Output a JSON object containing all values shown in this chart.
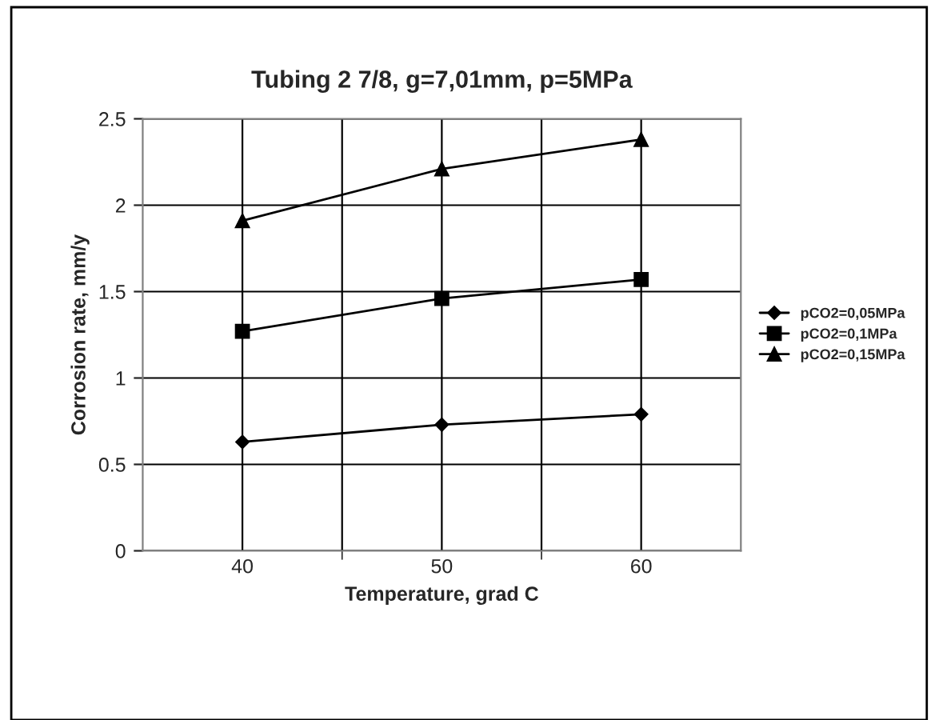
{
  "chart_data": {
    "type": "line",
    "title": "Tubing 2 7/8, g=7,01mm, p=5MPa",
    "xlabel": "Temperature, grad C",
    "ylabel": "Corrosion rate, mm/y",
    "categories": [
      "40",
      "50",
      "60"
    ],
    "series": [
      {
        "name": "pCO2=0,05MPa",
        "color": "#000000",
        "marker": "diamond",
        "values": [
          0.63,
          0.73,
          0.79
        ]
      },
      {
        "name": "pCO2=0,1MPa",
        "color": "#000000",
        "marker": "square",
        "values": [
          1.27,
          1.46,
          1.57
        ]
      },
      {
        "name": "pCO2=0,15MPa",
        "color": "#000000",
        "marker": "triangle",
        "values": [
          1.91,
          2.21,
          2.38
        ]
      }
    ],
    "ylim": [
      0,
      2.5
    ],
    "yticks": [
      0,
      0.5,
      1,
      1.5,
      2,
      2.5
    ],
    "grid": true,
    "legend": "right",
    "line_style": "solid"
  }
}
